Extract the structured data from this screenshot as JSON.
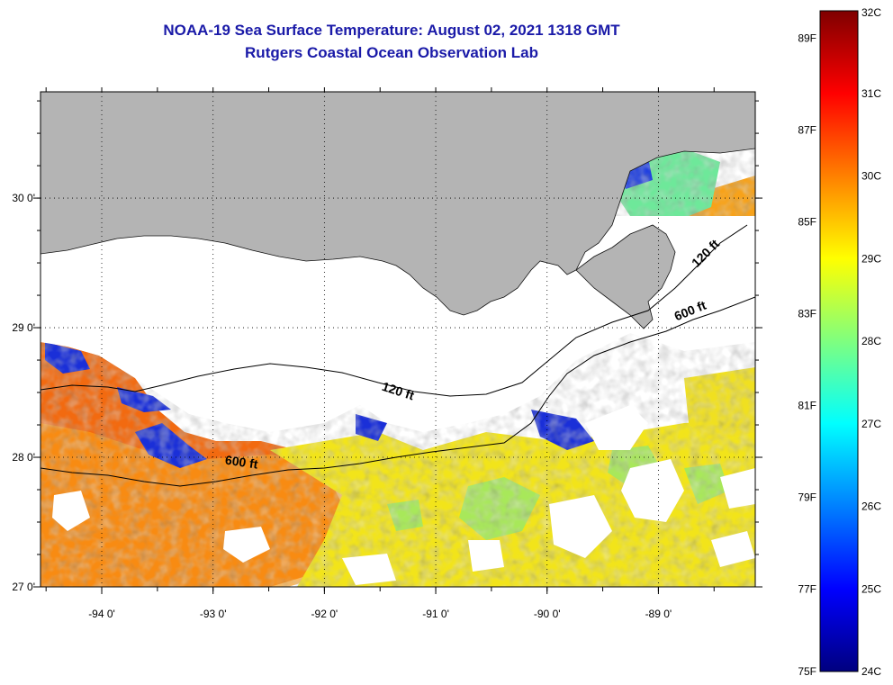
{
  "header": {
    "title": "NOAA-19 Sea Surface Temperature:  August 02, 2021 1318 GMT",
    "subtitle": "Rutgers Coastal Ocean Observation Lab"
  },
  "map": {
    "lon_range": [
      -94.55,
      -88.13
    ],
    "lat_range": [
      27.0,
      30.82
    ],
    "lon_ticks": [
      {
        "value": -94,
        "label": "-94 0'"
      },
      {
        "value": -93,
        "label": "-93 0'"
      },
      {
        "value": -92,
        "label": "-92 0'"
      },
      {
        "value": -91,
        "label": "-91 0'"
      },
      {
        "value": -90,
        "label": "-90 0'"
      },
      {
        "value": -89,
        "label": "-89 0'"
      }
    ],
    "lat_ticks": [
      {
        "value": 27,
        "label": "27 0'"
      },
      {
        "value": 28,
        "label": "28 0'"
      },
      {
        "value": 29,
        "label": "29 0'"
      },
      {
        "value": 30,
        "label": "30 0'"
      }
    ],
    "contour_labels": [
      {
        "text": "120 ft",
        "lon": -91.35,
        "lat": 28.48,
        "angle": 18
      },
      {
        "text": "120 ft",
        "lon": -88.55,
        "lat": 29.55,
        "angle": -45
      },
      {
        "text": "600 ft",
        "lon": -92.75,
        "lat": 27.93,
        "angle": 8
      },
      {
        "text": "600 ft",
        "lon": -88.7,
        "lat": 29.1,
        "angle": -22
      }
    ],
    "colors": {
      "land": "#b4b4b4",
      "no_data": "#ffffff",
      "frame": "#000000"
    }
  },
  "colorbar": {
    "gradient": [
      "#00007f",
      "#0000ff",
      "#0080ff",
      "#00ffff",
      "#7fff7f",
      "#ffff00",
      "#ff8000",
      "#ff0000",
      "#7f0000"
    ],
    "celsius_labels": [
      {
        "value": 32,
        "label": "32C"
      },
      {
        "value": 31,
        "label": "31C"
      },
      {
        "value": 30,
        "label": "30C"
      },
      {
        "value": 29,
        "label": "29C"
      },
      {
        "value": 28,
        "label": "28C"
      },
      {
        "value": 27,
        "label": "27C"
      },
      {
        "value": 26,
        "label": "26C"
      },
      {
        "value": 25,
        "label": "25C"
      },
      {
        "value": 24,
        "label": "24C"
      }
    ],
    "fahrenheit_labels": [
      {
        "value": 89,
        "label": "89F"
      },
      {
        "value": 87,
        "label": "87F"
      },
      {
        "value": 85,
        "label": "85F"
      },
      {
        "value": 83,
        "label": "83F"
      },
      {
        "value": 81,
        "label": "81F"
      },
      {
        "value": 79,
        "label": "79F"
      },
      {
        "value": 77,
        "label": "77F"
      },
      {
        "value": 75,
        "label": "75F"
      }
    ]
  }
}
